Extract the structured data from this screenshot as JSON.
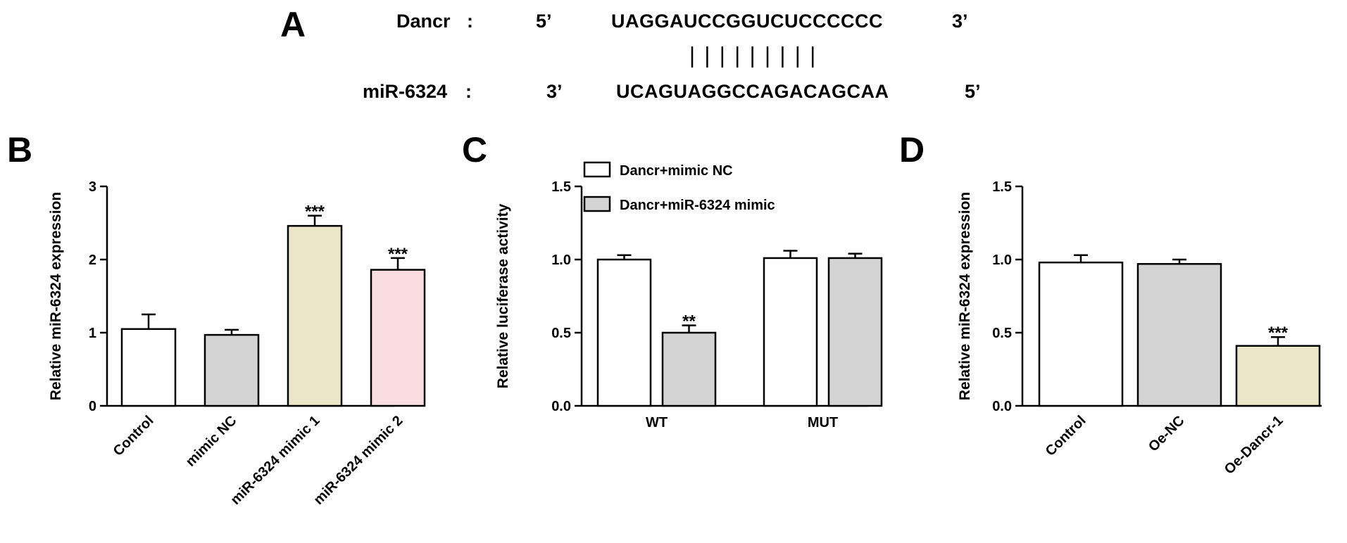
{
  "panel_a": {
    "letter": "A",
    "row1": {
      "name": "Dancr",
      "colon": ":",
      "prime_start": "5’",
      "sequence": "UAGGAUCCGGUCUCCCCCC",
      "prime_end": "3’"
    },
    "row2": {
      "name": "miR-6324",
      "colon": ":",
      "prime_start": "3’",
      "sequence": "UCAGUAGGCCAGACAGCAA",
      "prime_end": "5’"
    },
    "pairing_lines": 9
  },
  "colors": {
    "white": "#ffffff",
    "gray": "#d4d4d4",
    "beige": "#ece6c8",
    "pink": "#f9dde1",
    "axis": "#000000"
  },
  "chart_data": [
    {
      "panel": "B",
      "type": "bar",
      "title": "",
      "ylabel": "Relative miR-6324 expression",
      "xlabel": "",
      "ylim": [
        0,
        3
      ],
      "yticks": [
        0,
        1,
        2,
        3
      ],
      "ytick_labels": [
        "0",
        "1",
        "2",
        "3"
      ],
      "categories": [
        "Control",
        "mimic NC",
        "miR-6324 mimic 1",
        "miR-6324 mimic 2"
      ],
      "values": [
        1.05,
        0.97,
        2.46,
        1.86
      ],
      "errors": [
        0.2,
        0.07,
        0.14,
        0.16
      ],
      "significance": [
        "",
        "",
        "***",
        "***"
      ],
      "bar_colors": [
        "white",
        "gray",
        "beige",
        "pink"
      ],
      "rotated_labels": true,
      "grid": false
    },
    {
      "panel": "C",
      "type": "bar",
      "title": "",
      "ylabel": "Relative luciferase activity",
      "xlabel": "",
      "ylim": [
        0,
        1.5
      ],
      "yticks": [
        0,
        0.5,
        1.0,
        1.5
      ],
      "ytick_labels": [
        "0.0",
        "0.5",
        "1.0",
        "1.5"
      ],
      "categories": [
        "WT",
        "MUT"
      ],
      "series": [
        {
          "name": "Dancr+mimic NC",
          "color": "white",
          "values": [
            1.0,
            1.01
          ],
          "errors": [
            0.03,
            0.05
          ],
          "significance": [
            "",
            ""
          ]
        },
        {
          "name": "Dancr+miR-6324 mimic",
          "color": "gray",
          "values": [
            0.5,
            1.01
          ],
          "errors": [
            0.05,
            0.03
          ],
          "significance": [
            "**",
            ""
          ]
        }
      ],
      "legend_position": "top-left",
      "rotated_labels": false,
      "grid": false
    },
    {
      "panel": "D",
      "type": "bar",
      "title": "",
      "ylabel": "Relative miR-6324 expression",
      "xlabel": "",
      "ylim": [
        0,
        1.5
      ],
      "yticks": [
        0,
        0.5,
        1.0,
        1.5
      ],
      "ytick_labels": [
        "0.0",
        "0.5",
        "1.0",
        "1.5"
      ],
      "categories": [
        "Control",
        "Oe-NC",
        "Oe-Dancr-1"
      ],
      "values": [
        0.98,
        0.97,
        0.41
      ],
      "errors": [
        0.05,
        0.03,
        0.06
      ],
      "significance": [
        "",
        "",
        "***"
      ],
      "bar_colors": [
        "white",
        "gray",
        "beige"
      ],
      "rotated_labels": true,
      "grid": false
    }
  ]
}
